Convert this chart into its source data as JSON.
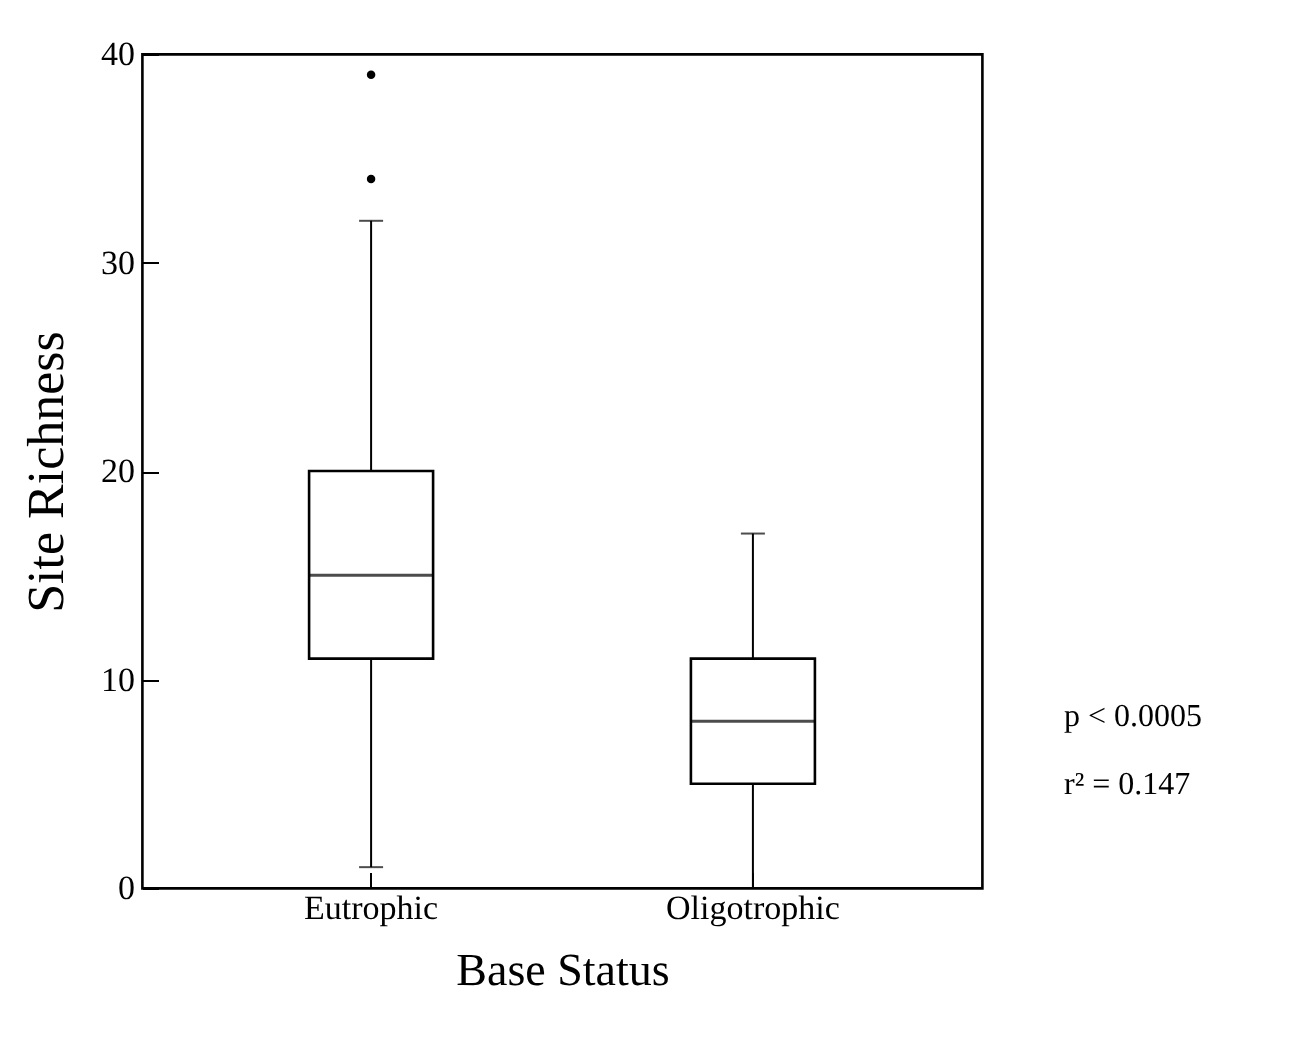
{
  "chart_data": {
    "type": "box",
    "xlabel": "Base Status",
    "ylabel": "Site Richness",
    "categories": [
      "Eutrophic",
      "Oligotrophic"
    ],
    "boxes": [
      {
        "low": 1,
        "q1": 11,
        "median": 15,
        "q3": 20,
        "high": 32,
        "outliers": [
          34,
          39
        ]
      },
      {
        "low": 0,
        "q1": 5,
        "median": 8,
        "q3": 11,
        "high": 17
      }
    ],
    "ylim": [
      0,
      40
    ],
    "yticks": [
      0,
      10,
      20,
      30,
      40
    ],
    "annotations": [
      "p < 0.0005",
      "r² = 0.147"
    ]
  }
}
